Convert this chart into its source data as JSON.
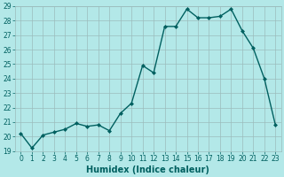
{
  "xlabel": "Humidex (Indice chaleur)",
  "x": [
    0,
    1,
    2,
    3,
    4,
    5,
    6,
    7,
    8,
    9,
    10,
    11,
    12,
    13,
    14,
    15,
    16,
    17,
    18,
    19,
    20,
    21,
    22,
    23
  ],
  "y": [
    20.2,
    19.2,
    20.1,
    20.3,
    20.5,
    20.9,
    20.7,
    20.8,
    20.4,
    21.6,
    22.3,
    24.9,
    24.4,
    27.6,
    27.6,
    28.8,
    28.2,
    28.2,
    28.3,
    28.8,
    27.3,
    26.1,
    24.0,
    20.8
  ],
  "line_color": "#006060",
  "marker": "D",
  "marker_size": 2.0,
  "line_width": 1.0,
  "bg_color": "#b3e8e8",
  "grid_color": "#9bbcbc",
  "ylim": [
    19,
    29
  ],
  "yticks": [
    19,
    20,
    21,
    22,
    23,
    24,
    25,
    26,
    27,
    28,
    29
  ],
  "xticks": [
    0,
    1,
    2,
    3,
    4,
    5,
    6,
    7,
    8,
    9,
    10,
    11,
    12,
    13,
    14,
    15,
    16,
    17,
    18,
    19,
    20,
    21,
    22,
    23
  ],
  "tick_color": "#006060",
  "label_color": "#006060",
  "axis_fontsize": 7,
  "tick_fontsize": 5.5
}
